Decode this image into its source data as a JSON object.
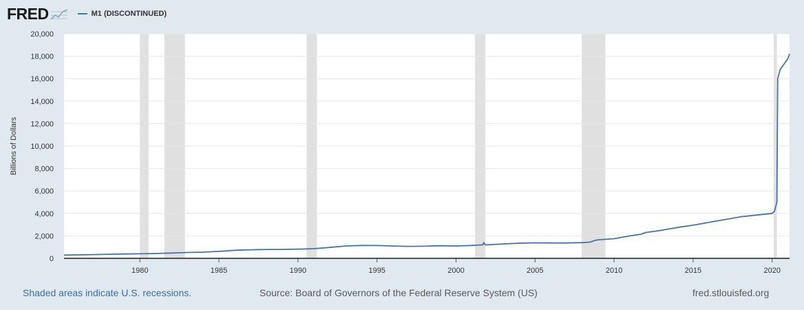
{
  "header": {
    "logo": "FRED",
    "logo_icon": "trend-line-icon",
    "series_label": "M1 (DISCONTINUED)"
  },
  "footer": {
    "recession_note": "Shaded areas indicate U.S. recessions.",
    "source": "Source: Board of Governors of the Federal Reserve System (US)",
    "url": "fred.stlouisfed.org"
  },
  "colors": {
    "line": "#4572a7",
    "recession": "#e0e0e0",
    "plot_bg": "#ffffff",
    "page_bg": "#e1e9f0",
    "grid": "#e6e6e6"
  },
  "chart_data": {
    "type": "line",
    "title": "",
    "xlabel": "",
    "ylabel": "Billions of Dollars",
    "xlim": [
      1975.2,
      2021.1
    ],
    "ylim": [
      0,
      20000
    ],
    "x_ticks": [
      1980,
      1985,
      1990,
      1995,
      2000,
      2005,
      2010,
      2015,
      2020
    ],
    "y_ticks": [
      0,
      2000,
      4000,
      6000,
      8000,
      10000,
      12000,
      14000,
      16000,
      18000,
      20000
    ],
    "y_tick_labels": [
      "0",
      "2,000",
      "4,000",
      "6,000",
      "8,000",
      "10,000",
      "12,000",
      "14,000",
      "16,000",
      "18,000",
      "20,000"
    ],
    "grid": true,
    "legend": "top-left",
    "recessions": [
      [
        1980.0,
        1980.55
      ],
      [
        1981.55,
        1982.85
      ],
      [
        1990.55,
        1991.2
      ],
      [
        2001.2,
        2001.85
      ],
      [
        2007.95,
        2009.45
      ],
      [
        2020.1,
        2020.3
      ]
    ],
    "series": [
      {
        "name": "M1 (DISCONTINUED)",
        "x": [
          1975.2,
          1976,
          1977,
          1978,
          1979,
          1980,
          1981,
          1982,
          1983,
          1984,
          1985,
          1986,
          1987,
          1988,
          1989,
          1990,
          1991,
          1992,
          1993,
          1994,
          1995,
          1996,
          1997,
          1998,
          1999,
          2000,
          2001,
          2001.7,
          2001.75,
          2001.85,
          2002,
          2003,
          2004,
          2005,
          2006,
          2007,
          2008,
          2008.5,
          2008.8,
          2009,
          2010,
          2011,
          2011.7,
          2012,
          2013,
          2014,
          2015,
          2016,
          2017,
          2018,
          2019,
          2020,
          2020.15,
          2020.3,
          2020.35,
          2020.5,
          2021,
          2021.1
        ],
        "values": [
          290,
          305,
          330,
          360,
          385,
          405,
          430,
          470,
          520,
          555,
          620,
          720,
          760,
          790,
          795,
          815,
          860,
          970,
          1100,
          1150,
          1140,
          1100,
          1070,
          1080,
          1120,
          1100,
          1150,
          1200,
          1400,
          1200,
          1200,
          1280,
          1350,
          1380,
          1370,
          1370,
          1400,
          1450,
          1600,
          1650,
          1750,
          2000,
          2150,
          2300,
          2500,
          2750,
          2950,
          3200,
          3450,
          3700,
          3850,
          4000,
          4200,
          5000,
          16000,
          16800,
          17800,
          18200
        ]
      }
    ]
  }
}
